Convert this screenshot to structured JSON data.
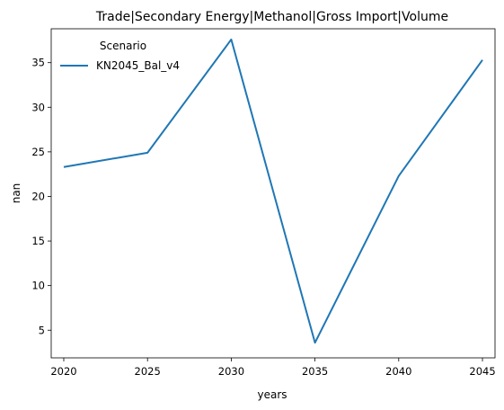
{
  "chart_data": {
    "type": "line",
    "title": "Trade|Secondary Energy|Methanol|Gross Import|Volume",
    "xlabel": "years",
    "ylabel": "nan",
    "x": [
      2020,
      2025,
      2030,
      2035,
      2040,
      2045
    ],
    "xticks": [
      "2020",
      "2025",
      "2030",
      "2035",
      "2040",
      "2045"
    ],
    "yticks": [
      "5",
      "10",
      "15",
      "20",
      "25",
      "30",
      "35"
    ],
    "xlim": [
      2019.25,
      2045.75
    ],
    "ylim": [
      1.9,
      38.8
    ],
    "grid": false,
    "legend": {
      "title": "Scenario",
      "placement": "top-left"
    },
    "series": [
      {
        "name": "KN2045_Bal_v4",
        "color": "#1f77b4",
        "values": [
          23.3,
          24.9,
          37.6,
          3.6,
          22.3,
          35.3
        ]
      }
    ]
  }
}
